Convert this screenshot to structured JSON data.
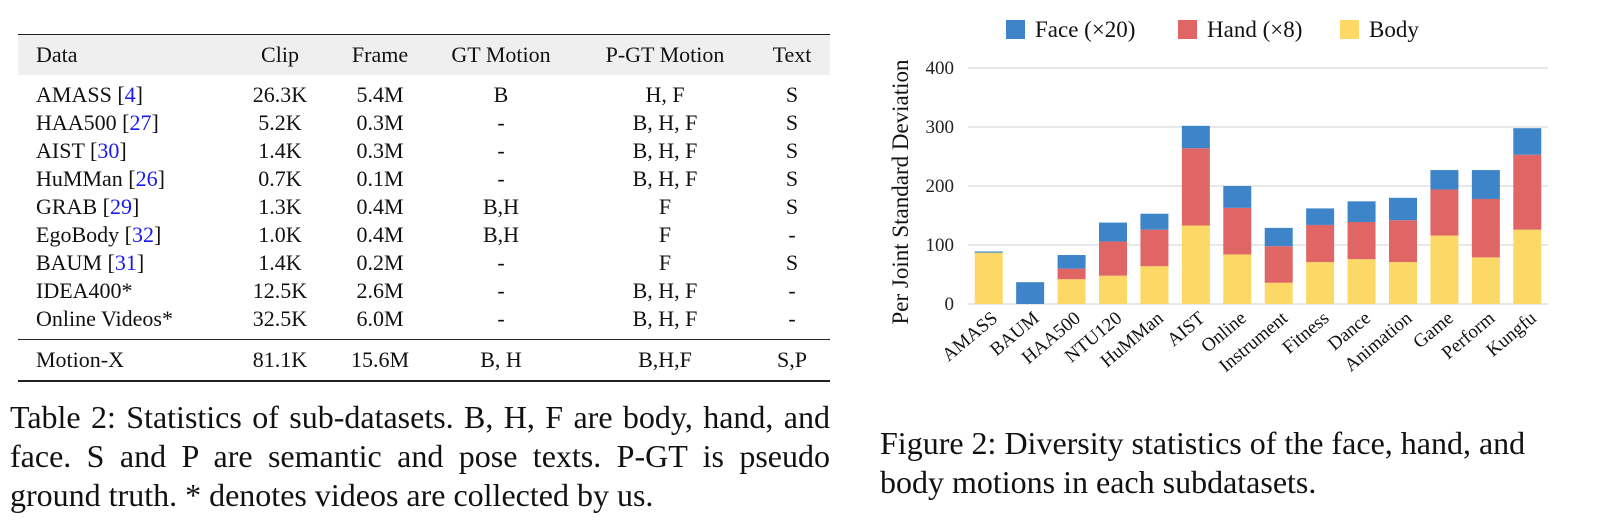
{
  "table": {
    "headers": [
      "Data",
      "Clip",
      "Frame",
      "GT Motion",
      "P-GT Motion",
      "Text"
    ],
    "rows": [
      {
        "name": "AMASS",
        "cite": "4",
        "clip": "26.3K",
        "frame": "5.4M",
        "gt": "B",
        "pgt": "H, F",
        "text": "S"
      },
      {
        "name": "HAA500",
        "cite": "27",
        "clip": "5.2K",
        "frame": "0.3M",
        "gt": "-",
        "pgt": "B, H, F",
        "text": "S"
      },
      {
        "name": "AIST",
        "cite": "30",
        "clip": "1.4K",
        "frame": "0.3M",
        "gt": "-",
        "pgt": "B, H, F",
        "text": "S"
      },
      {
        "name": "HuMMan",
        "cite": "26",
        "clip": "0.7K",
        "frame": "0.1M",
        "gt": "-",
        "pgt": "B, H, F",
        "text": "S"
      },
      {
        "name": "GRAB",
        "cite": "29",
        "clip": "1.3K",
        "frame": "0.4M",
        "gt": "B,H",
        "pgt": "F",
        "text": "S"
      },
      {
        "name": "EgoBody",
        "cite": "32",
        "clip": "1.0K",
        "frame": "0.4M",
        "gt": "B,H",
        "pgt": "F",
        "text": "-"
      },
      {
        "name": "BAUM",
        "cite": "31",
        "clip": "1.4K",
        "frame": "0.2M",
        "gt": "-",
        "pgt": "F",
        "text": "S"
      },
      {
        "name": "IDEA400*",
        "cite": "",
        "clip": "12.5K",
        "frame": "2.6M",
        "gt": "-",
        "pgt": "B, H, F",
        "text": "-"
      },
      {
        "name": "Online Videos*",
        "cite": "",
        "clip": "32.5K",
        "frame": "6.0M",
        "gt": "-",
        "pgt": "B, H, F",
        "text": "-"
      }
    ],
    "total": {
      "name": "Motion-X",
      "clip": "81.1K",
      "frame": "15.6M",
      "gt": "B, H",
      "pgt": "B,H,F",
      "text": "S,P"
    }
  },
  "table_caption": "Table 2: Statistics of sub-datasets. B, H, F are body, hand, and face. S and P are semantic and pose texts. P-GT is pseudo ground truth. * denotes videos are collected by us.",
  "figure_caption": "Figure 2: Diversity statistics of the face, hand, and body motions in each subdatasets.",
  "chart_data": {
    "type": "bar",
    "stacked": true,
    "title": "",
    "xlabel": "",
    "ylabel": "Per Joint Standard Deviation",
    "ylim": [
      0,
      400
    ],
    "yticks": [
      0,
      100,
      200,
      300,
      400
    ],
    "grid": true,
    "legend_position": "top",
    "categories": [
      "AMASS",
      "BAUM",
      "HAA500",
      "NTU120",
      "HuMMan",
      "AIST",
      "Online",
      "Instrument",
      "Fitness",
      "Dance",
      "Animation",
      "Game",
      "Perform",
      "Kungfu"
    ],
    "series": [
      {
        "name": "Body",
        "color": "#fcd967",
        "values": [
          87,
          0,
          42,
          48,
          64,
          133,
          84,
          36,
          71,
          76,
          71,
          116,
          79,
          126
        ]
      },
      {
        "name": "Hand (×8)",
        "color": "#e06666",
        "values": [
          0,
          0,
          18,
          58,
          62,
          131,
          79,
          62,
          63,
          63,
          71,
          78,
          99,
          127
        ]
      },
      {
        "name": "Face (×20)",
        "color": "#3d85c8",
        "values": [
          2,
          37,
          23,
          32,
          27,
          38,
          37,
          31,
          28,
          35,
          38,
          33,
          49,
          45
        ]
      }
    ],
    "legend_order": [
      "Face (×20)",
      "Hand (×8)",
      "Body"
    ]
  }
}
